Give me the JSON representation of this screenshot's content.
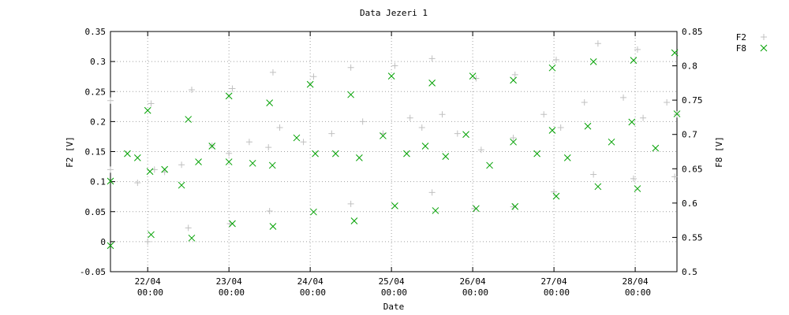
{
  "chart_data": {
    "type": "scatter",
    "title": "Data Jezeri 1",
    "x_label": "Date",
    "y_label": "F2 [V]",
    "y2_label": "F8 [V]",
    "xlim": [
      "21/04 13:00",
      "28/04 12:20"
    ],
    "xticks": [
      "22/04 00:00",
      "23/04 00:00",
      "24/04 00:00",
      "25/04 00:00",
      "26/04 00:00",
      "27/04 00:00",
      "28/04 00:00"
    ],
    "ylim": [
      -0.05,
      0.35
    ],
    "yticks": [
      -0.05,
      0,
      0.05,
      0.1,
      0.15,
      0.2,
      0.25,
      0.3,
      0.35
    ],
    "y2lim": [
      0.5,
      0.85
    ],
    "y2ticks": [
      0.5,
      0.55,
      0.6,
      0.65,
      0.7,
      0.75,
      0.8,
      0.85
    ],
    "grid": true,
    "legend": "top-right",
    "series": [
      {
        "name": "F2",
        "color": "#c0c0c0",
        "marker": "plus",
        "x": [
          "21/04 13:00",
          "21/04 21:00",
          "22/04 02:00",
          "22/04 05:00",
          "22/04 10:00",
          "22/04 19:00",
          "23/04 00:00",
          "23/04 06:00",
          "23/04 11:40",
          "23/04 15:00",
          "23/04 22:00",
          "24/04 06:20",
          "24/04 15:30",
          "24/04 21:30",
          "25/04 05:30",
          "25/04 09:00",
          "25/04 15:00",
          "25/04 19:30",
          "26/04 02:30",
          "26/04 12:00",
          "26/04 21:00",
          "27/04 02:00",
          "27/04 09:00",
          "27/04 20:30",
          "28/04 02:20",
          "28/04 09:20",
          "28/04 12:20",
          "21/04 13:00",
          "22/04 01:00",
          "22/04 00:00",
          "22/04 13:00",
          "22/04 12:00",
          "23/04 01:00",
          "23/04 00:20",
          "23/04 13:00",
          "23/04 12:00",
          "24/04 01:00",
          "24/04 12:00",
          "24/04 12:00",
          "25/04 01:00",
          "25/04 12:00",
          "25/04 12:00",
          "26/04 01:00",
          "26/04 00:30",
          "26/04 12:30",
          "26/04 12:00",
          "27/04 00:40",
          "27/04 00:00",
          "27/04 13:00",
          "27/04 11:40",
          "28/04 00:40",
          "27/04 23:30",
          "28/04 11:40"
        ],
        "values": [
          0.12,
          0.098,
          0.12,
          0.116,
          0.128,
          0.16,
          0.147,
          0.166,
          0.157,
          0.19,
          0.166,
          0.18,
          0.2,
          0.18,
          0.206,
          0.19,
          0.212,
          0.18,
          0.153,
          0.173,
          0.212,
          0.19,
          0.232,
          0.24,
          0.206,
          0.232,
          0.212,
          0.235,
          0.23,
          0.0,
          0.253,
          0.023,
          0.255,
          0.03,
          0.282,
          0.051,
          0.275,
          0.29,
          0.063,
          0.293,
          0.305,
          0.082,
          0.272,
          0.055,
          0.278,
          0.058,
          0.303,
          0.083,
          0.33,
          0.112,
          0.32,
          0.105,
          0.108
        ]
      },
      {
        "name": "F8",
        "color": "#00a000",
        "marker": "cross",
        "axis": "y2",
        "x": [
          "21/04 13:00",
          "21/04 18:00",
          "21/04 21:00",
          "22/04 00:40",
          "22/04 05:00",
          "22/04 10:00",
          "22/04 15:00",
          "22/04 19:00",
          "23/04 00:00",
          "23/04 07:00",
          "23/04 12:50",
          "23/04 20:00",
          "24/04 01:30",
          "24/04 07:30",
          "24/04 14:30",
          "24/04 21:30",
          "25/04 04:30",
          "25/04 10:00",
          "25/04 16:00",
          "25/04 22:00",
          "26/04 05:00",
          "26/04 12:00",
          "26/04 19:00",
          "26/04 23:30",
          "27/04 04:00",
          "27/04 10:00",
          "27/04 17:00",
          "27/04 23:00",
          "28/04 06:00",
          "28/04 12:20",
          "21/04 13:00",
          "22/04 00:00",
          "22/04 01:00",
          "22/04 12:00",
          "22/04 13:00",
          "23/04 00:00",
          "23/04 01:00",
          "23/04 12:00",
          "23/04 13:00",
          "24/04 00:00",
          "24/04 01:00",
          "24/04 12:00",
          "24/04 13:00",
          "25/04 00:00",
          "25/04 01:00",
          "25/04 12:00",
          "25/04 13:00",
          "26/04 00:00",
          "26/04 01:00",
          "26/04 12:00",
          "26/04 12:30",
          "26/04 23:30",
          "27/04 00:40",
          "27/04 11:40",
          "27/04 13:00",
          "27/04 23:30",
          "28/04 00:40",
          "28/04 11:40"
        ],
        "values": [
          0.632,
          0.672,
          0.666,
          0.646,
          0.649,
          0.626,
          0.66,
          0.683,
          0.66,
          0.658,
          0.655,
          0.695,
          0.672,
          0.672,
          0.666,
          0.698,
          0.672,
          0.683,
          0.668,
          0.7,
          0.655,
          0.689,
          0.672,
          0.706,
          0.666,
          0.712,
          0.689,
          0.718,
          0.68,
          0.73,
          0.538,
          0.735,
          0.554,
          0.722,
          0.549,
          0.756,
          0.57,
          0.746,
          0.566,
          0.773,
          0.587,
          0.758,
          0.574,
          0.785,
          0.596,
          0.775,
          0.589,
          0.785,
          0.592,
          0.779,
          0.595,
          0.797,
          0.61,
          0.806,
          0.624,
          0.808,
          0.621,
          0.819
        ]
      }
    ]
  }
}
